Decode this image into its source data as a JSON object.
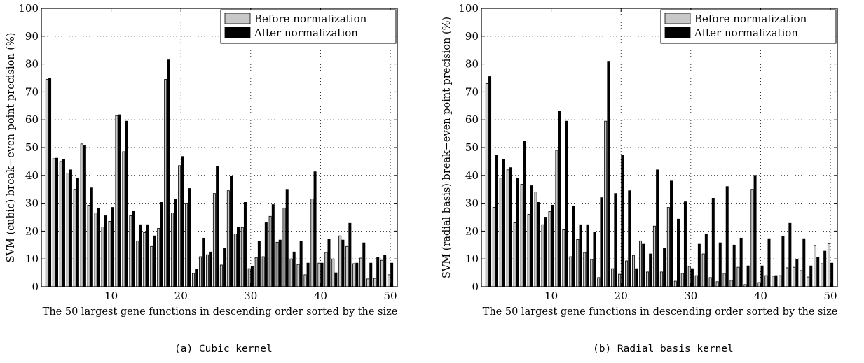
{
  "chart_data": [
    {
      "type": "bar",
      "caption": "(a) Cubic kernel",
      "xlabel": "The 50 largest gene functions in descending order sorted by the size",
      "ylabel": "SVM (cubic) break−even point precision (%)",
      "xlim": [
        0,
        51
      ],
      "ylim": [
        0,
        100
      ],
      "xticks": [
        10,
        20,
        30,
        40,
        50
      ],
      "yticks": [
        0,
        10,
        20,
        30,
        40,
        50,
        60,
        70,
        80,
        90,
        100
      ],
      "grid": true,
      "legend_position": "top-right",
      "x": [
        1,
        2,
        3,
        4,
        5,
        6,
        7,
        8,
        9,
        10,
        11,
        12,
        13,
        14,
        15,
        16,
        17,
        18,
        19,
        20,
        21,
        22,
        23,
        24,
        25,
        26,
        27,
        28,
        29,
        30,
        31,
        32,
        33,
        34,
        35,
        36,
        37,
        38,
        39,
        40,
        41,
        42,
        43,
        44,
        45,
        46,
        47,
        48,
        49,
        50
      ],
      "series": [
        {
          "name": "Before normalization",
          "color": "#c8c8c8",
          "values": [
            74.5,
            46,
            45,
            40.8,
            35,
            51.3,
            29.3,
            26.5,
            21.5,
            23.5,
            61.5,
            48.5,
            25.5,
            16.5,
            19.5,
            14.5,
            21,
            74.5,
            26.5,
            43.5,
            30,
            4.8,
            10.8,
            11.5,
            33.5,
            7.8,
            34.5,
            19,
            21.3,
            6.5,
            10.5,
            10.8,
            25.3,
            16,
            28.3,
            10,
            8,
            4.3,
            31.5,
            8.5,
            12.3,
            10,
            18.3,
            14.5,
            8.3,
            10.3,
            2.8,
            3,
            9.5,
            4.3
          ]
        },
        {
          "name": "After normalization",
          "color": "#000000",
          "values": [
            75,
            46.2,
            45.8,
            42,
            39,
            50.8,
            35.5,
            28.3,
            25.5,
            28.5,
            61.8,
            59.5,
            27.3,
            22.3,
            22.3,
            18.3,
            30.3,
            81.5,
            31.5,
            46.8,
            35.3,
            6.3,
            17.5,
            12.5,
            43.3,
            13.8,
            39.8,
            21.5,
            30.3,
            7.3,
            16.3,
            23,
            29.5,
            16.8,
            35,
            12.5,
            16.3,
            8.5,
            41.3,
            8.5,
            17,
            5,
            16.8,
            22.8,
            8.5,
            15.8,
            8.5,
            10.5,
            11.3,
            8.5
          ]
        }
      ]
    },
    {
      "type": "bar",
      "caption": "(b) Radial basis kernel",
      "xlabel": "The 50 largest gene functions in descending order sorted by the size",
      "ylabel": "SVM (radial basis) break−even point precision (%)",
      "xlim": [
        0,
        51
      ],
      "ylim": [
        0,
        100
      ],
      "xticks": [
        10,
        20,
        30,
        40,
        50
      ],
      "yticks": [
        0,
        10,
        20,
        30,
        40,
        50,
        60,
        70,
        80,
        90,
        100
      ],
      "grid": true,
      "legend_position": "top-right",
      "x": [
        1,
        2,
        3,
        4,
        5,
        6,
        7,
        8,
        9,
        10,
        11,
        12,
        13,
        14,
        15,
        16,
        17,
        18,
        19,
        20,
        21,
        22,
        23,
        24,
        25,
        26,
        27,
        28,
        29,
        30,
        31,
        32,
        33,
        34,
        35,
        36,
        37,
        38,
        39,
        40,
        41,
        42,
        43,
        44,
        45,
        46,
        47,
        48,
        49,
        50
      ],
      "series": [
        {
          "name": "Before normalization",
          "color": "#c8c8c8",
          "values": [
            73,
            28.5,
            39,
            42,
            23,
            36.8,
            26,
            34,
            22.3,
            27,
            49,
            20.5,
            10.8,
            17,
            12.3,
            9.8,
            3.3,
            59.5,
            6.5,
            4.5,
            9.3,
            11.3,
            16.5,
            5.3,
            21.8,
            5.3,
            28.5,
            2,
            4.8,
            7.3,
            4,
            11.8,
            3.3,
            1.8,
            4.8,
            2.3,
            7,
            0.8,
            35,
            1.5,
            4,
            3.8,
            4,
            6.8,
            7,
            5.8,
            3.5,
            14.8,
            8.3,
            15.5
          ]
        },
        {
          "name": "After normalization",
          "color": "#000000",
          "values": [
            75.5,
            47.3,
            45.8,
            42.8,
            39,
            52.3,
            36.3,
            30.3,
            25,
            29.3,
            63,
            59.5,
            28.8,
            22.3,
            22.3,
            19.5,
            32,
            81,
            33.5,
            47.3,
            34.5,
            6.5,
            15.3,
            11.8,
            42,
            13.8,
            38,
            24.3,
            30.5,
            6.5,
            15.3,
            19,
            31.8,
            15.8,
            36,
            15,
            17.5,
            7.5,
            40,
            7.5,
            17.3,
            4,
            18,
            22.8,
            9.8,
            17.3,
            7.5,
            10.5,
            12.8,
            8.5
          ]
        }
      ]
    }
  ]
}
